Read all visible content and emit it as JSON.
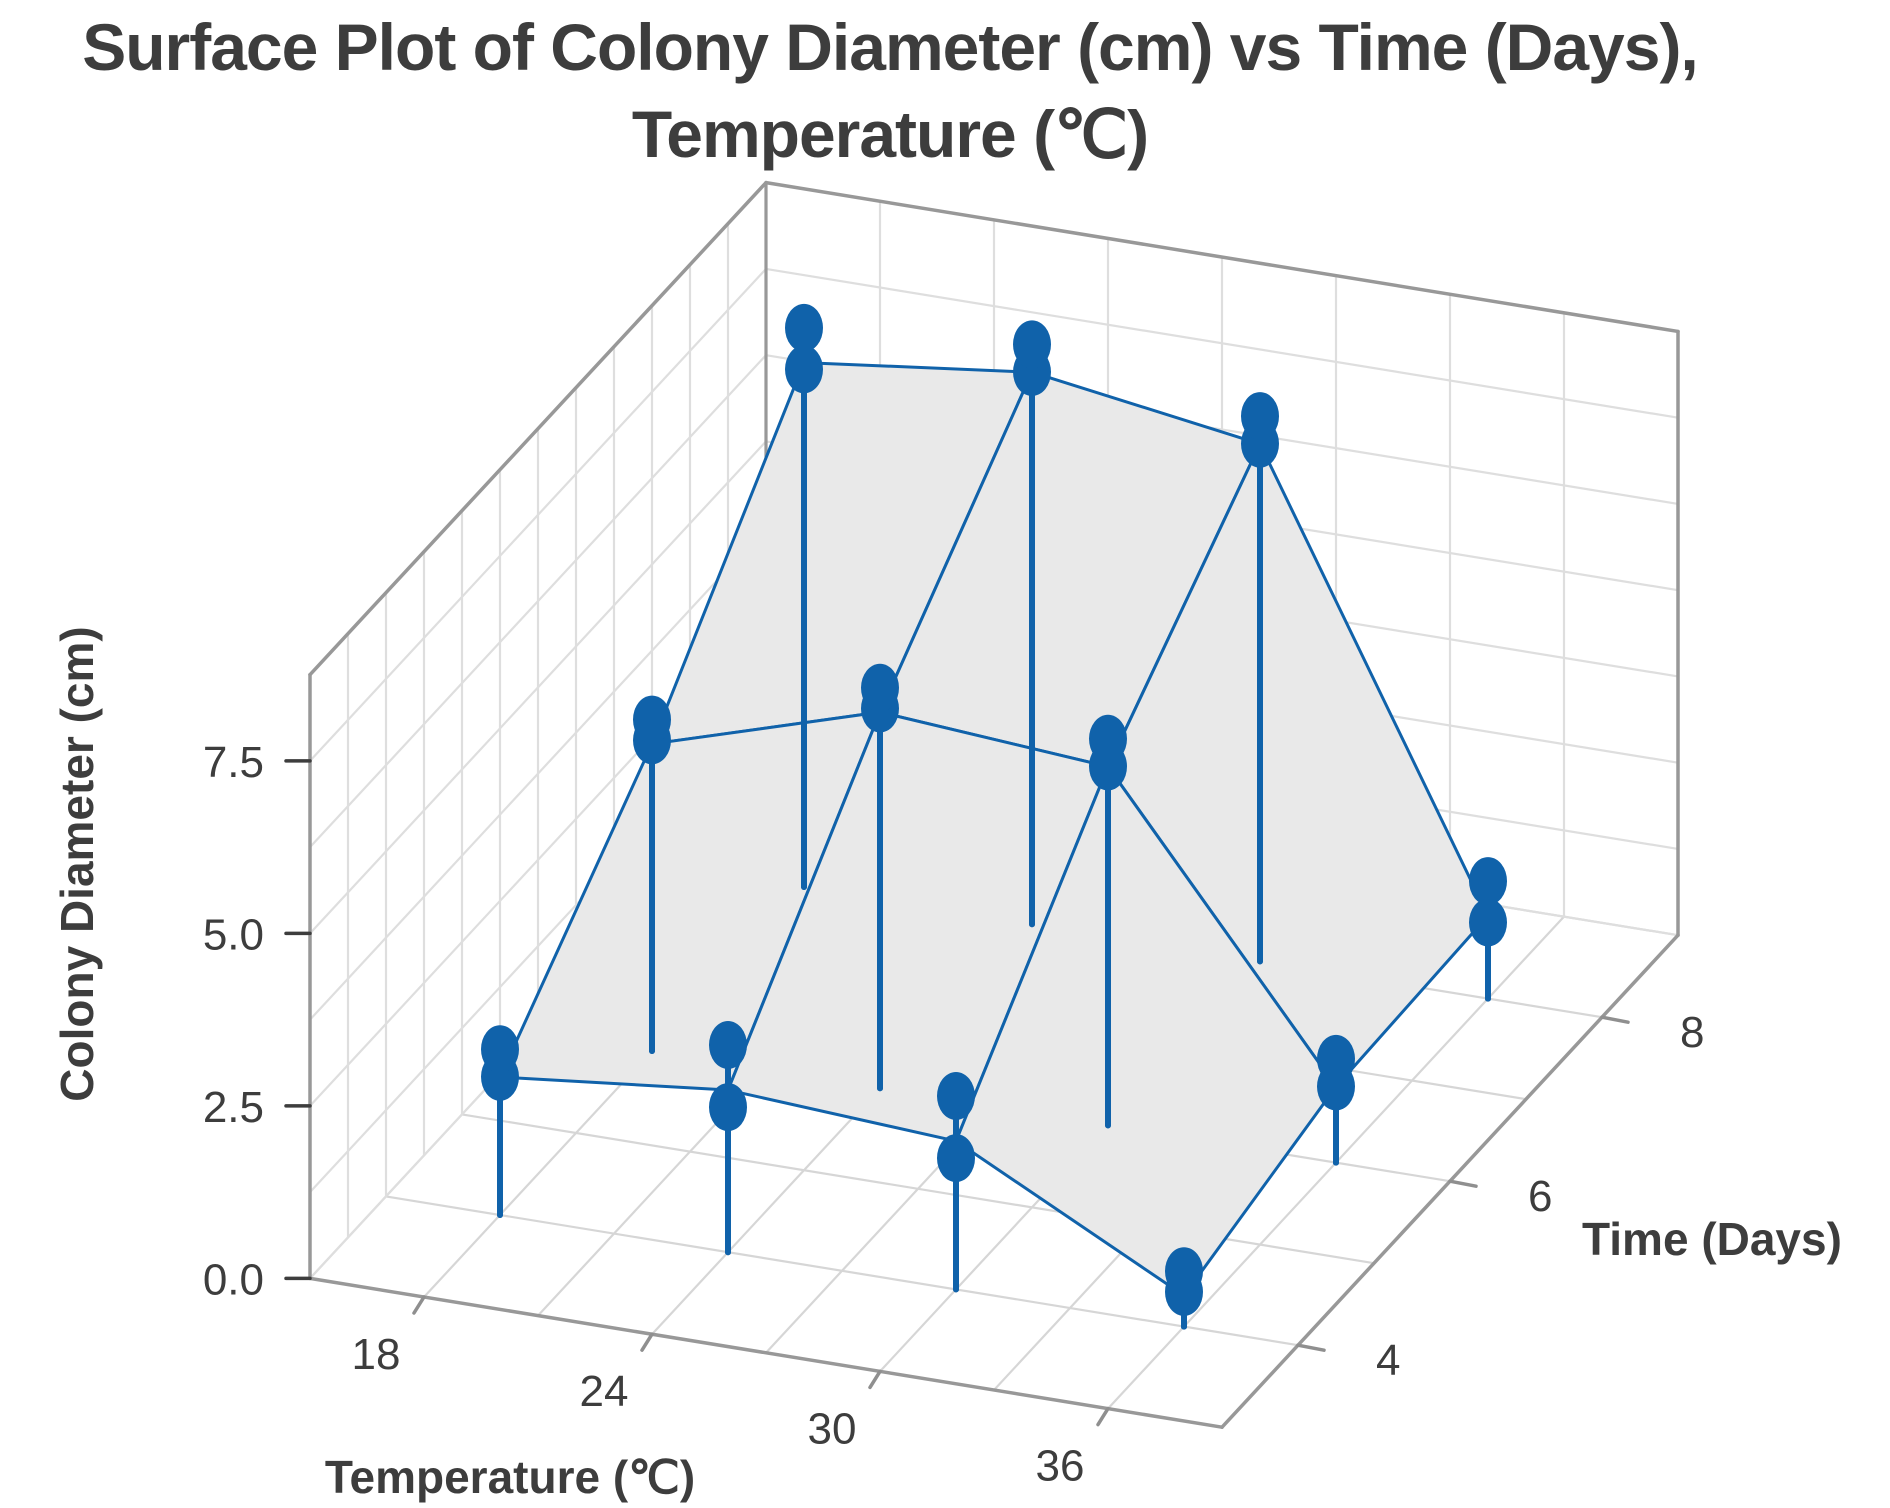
{
  "title": {
    "line1": "Surface Plot of Colony Diameter (cm) vs Time (Days),",
    "line2": "Temperature (℃)"
  },
  "colors": {
    "point": "#1062aa",
    "mesh": "#1062aa",
    "surface": "#e9e9e9",
    "wall_grid": "#dedede",
    "floor_grid": "#d6d6d6",
    "frame": "#989898",
    "tick": "#8f8f8f",
    "text": "#3d3d3d"
  },
  "axes": {
    "z": {
      "label": "Colony Diameter (cm)",
      "ticks": [
        {
          "v": 0.0,
          "label": "0.0"
        },
        {
          "v": 2.5,
          "label": "2.5"
        },
        {
          "v": 5.0,
          "label": "5.0"
        },
        {
          "v": 7.5,
          "label": "7.5"
        }
      ]
    },
    "temp": {
      "label": "Temperature (℃)",
      "ticks": [
        {
          "v": 18,
          "label": "18"
        },
        {
          "v": 24,
          "label": "24"
        },
        {
          "v": 30,
          "label": "30"
        },
        {
          "v": 36,
          "label": "36"
        }
      ]
    },
    "time": {
      "label": "Time (Days)",
      "ticks": [
        {
          "v": 4,
          "label": "4"
        },
        {
          "v": 6,
          "label": "6"
        },
        {
          "v": 8,
          "label": "8"
        }
      ]
    }
  },
  "chart_data": {
    "type": "surface3d",
    "title": "Surface Plot of Colony Diameter (cm) vs Time (Days), Temperature (℃)",
    "xlabel": "Temperature (℃)",
    "ylabel": "Time (Days)",
    "zlabel": "Colony Diameter (cm)",
    "axis_ranges": {
      "temp": [
        15,
        39
      ],
      "time": [
        3,
        9
      ],
      "z": [
        0,
        8.75
      ]
    },
    "grid_steps": {
      "floor_temp": 3,
      "floor_time": 1,
      "wall_z": 1.25,
      "leftwall_time": 0.5,
      "rightwall_temp": 3
    },
    "temps": [
      18,
      24,
      30,
      36
    ],
    "times": [
      4,
      6,
      8
    ],
    "surface_means": [
      [
        2.0,
        4.45,
        7.6
      ],
      [
        2.35,
        5.45,
        8.0
      ],
      [
        2.15,
        5.2,
        7.5
      ],
      [
        0.45,
        1.1,
        1.2
      ]
    ],
    "points": [
      {
        "temp": 18,
        "time": 4,
        "diameters": [
          1.8,
          2.2
        ]
      },
      {
        "temp": 18,
        "time": 6,
        "diameters": [
          4.3,
          4.6
        ]
      },
      {
        "temp": 18,
        "time": 8,
        "diameters": [
          7.3,
          7.9
        ]
      },
      {
        "temp": 24,
        "time": 4,
        "diameters": [
          1.9,
          2.8
        ]
      },
      {
        "temp": 24,
        "time": 6,
        "diameters": [
          5.3,
          5.6
        ]
      },
      {
        "temp": 24,
        "time": 8,
        "diameters": [
          7.8,
          8.2
        ]
      },
      {
        "temp": 30,
        "time": 4,
        "diameters": [
          1.7,
          2.6
        ]
      },
      {
        "temp": 30,
        "time": 6,
        "diameters": [
          5.0,
          5.4
        ]
      },
      {
        "temp": 30,
        "time": 8,
        "diameters": [
          7.3,
          7.7
        ]
      },
      {
        "temp": 36,
        "time": 4,
        "diameters": [
          0.3,
          0.6
        ]
      },
      {
        "temp": 36,
        "time": 6,
        "diameters": [
          0.9,
          1.3
        ]
      },
      {
        "temp": 36,
        "time": 8,
        "diameters": [
          0.9,
          1.5
        ]
      }
    ]
  }
}
